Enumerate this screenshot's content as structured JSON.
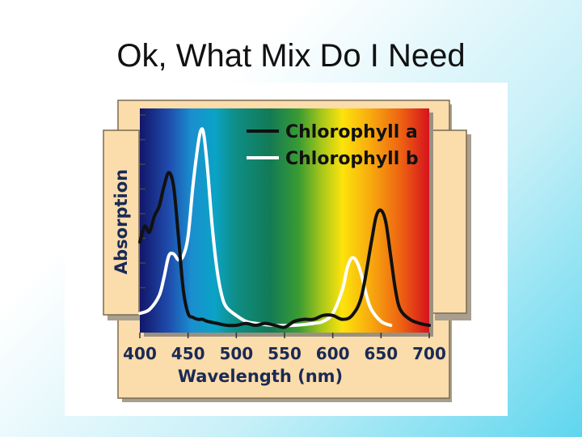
{
  "slide": {
    "title": "Ok, What Mix Do I Need"
  },
  "chart_data": {
    "type": "line",
    "title": "",
    "xlabel": "Wavelength (nm)",
    "ylabel": "Absorption",
    "xlim": [
      400,
      700
    ],
    "x_ticks": [
      400,
      450,
      500,
      550,
      600,
      650,
      700
    ],
    "legend_position": "top-right",
    "background": "visible-spectrum",
    "series": [
      {
        "name": "Chlorophyll a",
        "color": "#111111",
        "x": [
          400,
          405,
          410,
          415,
          420,
          425,
          430,
          435,
          440,
          445,
          450,
          455,
          460,
          465,
          470,
          480,
          490,
          500,
          510,
          520,
          530,
          540,
          550,
          560,
          570,
          580,
          590,
          600,
          610,
          620,
          630,
          640,
          645,
          650,
          655,
          660,
          665,
          670,
          680,
          690,
          700
        ],
        "y": [
          0.42,
          0.5,
          0.47,
          0.55,
          0.6,
          0.7,
          0.77,
          0.7,
          0.45,
          0.18,
          0.06,
          0.04,
          0.03,
          0.03,
          0.02,
          0.01,
          0.0,
          0.0,
          0.01,
          0.0,
          0.01,
          0.0,
          -0.01,
          0.02,
          0.03,
          0.03,
          0.05,
          0.05,
          0.03,
          0.05,
          0.15,
          0.42,
          0.55,
          0.58,
          0.52,
          0.35,
          0.18,
          0.08,
          0.03,
          0.01,
          0.0
        ]
      },
      {
        "name": "Chlorophyll b",
        "color": "#ffffff",
        "x": [
          400,
          410,
          420,
          425,
          430,
          435,
          440,
          445,
          450,
          455,
          460,
          463,
          466,
          470,
          475,
          480,
          485,
          490,
          500,
          510,
          520,
          540,
          560,
          580,
          590,
          600,
          610,
          615,
          620,
          625,
          630,
          635,
          640,
          650,
          660
        ],
        "y": [
          0.06,
          0.08,
          0.15,
          0.24,
          0.35,
          0.36,
          0.33,
          0.35,
          0.45,
          0.7,
          0.9,
          0.98,
          0.97,
          0.8,
          0.5,
          0.28,
          0.15,
          0.09,
          0.05,
          0.02,
          0.01,
          0.0,
          0.0,
          0.01,
          0.02,
          0.06,
          0.18,
          0.29,
          0.34,
          0.32,
          0.25,
          0.15,
          0.08,
          0.02,
          0.0
        ]
      }
    ]
  }
}
